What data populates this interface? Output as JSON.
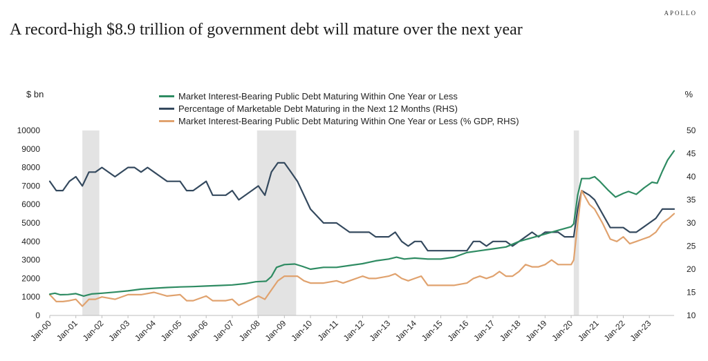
{
  "brand": "APOLLO",
  "title": "A record-high $8.9 trillion of government debt will mature over the next year",
  "chart_data": {
    "type": "line",
    "title": "A record-high $8.9 trillion of government debt will mature over the next year",
    "ylabel_left": "$ bn",
    "ylabel_right": "%",
    "ylim_left": [
      0,
      10000
    ],
    "ylim_right": [
      10,
      50
    ],
    "yticks_left": [
      "0",
      "1000",
      "2000",
      "3000",
      "4000",
      "5000",
      "6000",
      "7000",
      "8000",
      "9000",
      "10000"
    ],
    "yticks_right": [
      "10",
      "15",
      "20",
      "25",
      "30",
      "35",
      "40",
      "45",
      "50"
    ],
    "xticks": [
      "Jan-00",
      "Jan-01",
      "Jan-02",
      "Jan-03",
      "Jan-04",
      "Jan-05",
      "Jan-06",
      "Jan-07",
      "Jan-08",
      "Jan-09",
      "Jan-10",
      "Jan-11",
      "Jan-12",
      "Jan-13",
      "Jan-14",
      "Jan-15",
      "Jan-16",
      "Jan-17",
      "Jan-18",
      "Jan-19",
      "Jan-20",
      "Jan-21",
      "Jan-22",
      "Jan-23"
    ],
    "x_range": [
      2000.0,
      2023.95
    ],
    "recessions": [
      [
        2001.25,
        2001.9
      ],
      [
        2007.95,
        2009.45
      ],
      [
        2020.1,
        2020.3
      ]
    ],
    "series": [
      {
        "name": "Market Interest-Bearing Public Debt Maturing Within One Year or Less",
        "axis": "left",
        "color": "#2e8b62",
        "points": [
          [
            2000.0,
            1150
          ],
          [
            2000.2,
            1200
          ],
          [
            2000.4,
            1120
          ],
          [
            2000.7,
            1130
          ],
          [
            2001.0,
            1180
          ],
          [
            2001.3,
            1050
          ],
          [
            2001.6,
            1160
          ],
          [
            2002.0,
            1200
          ],
          [
            2002.5,
            1260
          ],
          [
            2003.0,
            1330
          ],
          [
            2003.5,
            1420
          ],
          [
            2004.0,
            1470
          ],
          [
            2004.5,
            1510
          ],
          [
            2005.0,
            1540
          ],
          [
            2005.5,
            1560
          ],
          [
            2006.0,
            1590
          ],
          [
            2006.5,
            1620
          ],
          [
            2007.0,
            1650
          ],
          [
            2007.5,
            1720
          ],
          [
            2007.9,
            1820
          ],
          [
            2008.3,
            1850
          ],
          [
            2008.5,
            2100
          ],
          [
            2008.7,
            2600
          ],
          [
            2009.0,
            2750
          ],
          [
            2009.4,
            2780
          ],
          [
            2009.7,
            2650
          ],
          [
            2010.0,
            2500
          ],
          [
            2010.5,
            2600
          ],
          [
            2011.0,
            2600
          ],
          [
            2011.5,
            2700
          ],
          [
            2012.0,
            2800
          ],
          [
            2012.5,
            2950
          ],
          [
            2013.0,
            3050
          ],
          [
            2013.3,
            3150
          ],
          [
            2013.6,
            3050
          ],
          [
            2014.0,
            3100
          ],
          [
            2014.5,
            3050
          ],
          [
            2015.0,
            3050
          ],
          [
            2015.5,
            3150
          ],
          [
            2016.0,
            3400
          ],
          [
            2016.5,
            3500
          ],
          [
            2017.0,
            3600
          ],
          [
            2017.5,
            3700
          ],
          [
            2018.0,
            4000
          ],
          [
            2018.5,
            4200
          ],
          [
            2019.0,
            4400
          ],
          [
            2019.5,
            4600
          ],
          [
            2020.0,
            4800
          ],
          [
            2020.1,
            4950
          ],
          [
            2020.25,
            6500
          ],
          [
            2020.4,
            7400
          ],
          [
            2020.7,
            7400
          ],
          [
            2020.9,
            7500
          ],
          [
            2021.1,
            7250
          ],
          [
            2021.4,
            6800
          ],
          [
            2021.7,
            6400
          ],
          [
            2022.0,
            6600
          ],
          [
            2022.2,
            6700
          ],
          [
            2022.5,
            6550
          ],
          [
            2022.8,
            6900
          ],
          [
            2023.1,
            7200
          ],
          [
            2023.3,
            7150
          ],
          [
            2023.5,
            7800
          ],
          [
            2023.7,
            8400
          ],
          [
            2023.95,
            8900
          ]
        ]
      },
      {
        "name": "Percentage of Marketable Debt Maturing in the Next 12 Months (RHS)",
        "axis": "right",
        "color": "#34495e",
        "points": [
          [
            2000.0,
            39
          ],
          [
            2000.25,
            37
          ],
          [
            2000.5,
            37
          ],
          [
            2000.75,
            39
          ],
          [
            2001.0,
            40
          ],
          [
            2001.25,
            38
          ],
          [
            2001.5,
            41
          ],
          [
            2001.75,
            41
          ],
          [
            2002.0,
            42
          ],
          [
            2002.5,
            40
          ],
          [
            2003.0,
            42
          ],
          [
            2003.25,
            42
          ],
          [
            2003.5,
            41
          ],
          [
            2003.75,
            42
          ],
          [
            2004.0,
            41
          ],
          [
            2004.5,
            39
          ],
          [
            2005.0,
            39
          ],
          [
            2005.25,
            37
          ],
          [
            2005.5,
            37
          ],
          [
            2006.0,
            39
          ],
          [
            2006.25,
            36
          ],
          [
            2006.75,
            36
          ],
          [
            2007.0,
            37
          ],
          [
            2007.25,
            35
          ],
          [
            2007.75,
            37
          ],
          [
            2008.0,
            38
          ],
          [
            2008.25,
            36
          ],
          [
            2008.5,
            41
          ],
          [
            2008.75,
            43
          ],
          [
            2009.0,
            43
          ],
          [
            2009.25,
            41
          ],
          [
            2009.5,
            39
          ],
          [
            2010.0,
            33
          ],
          [
            2010.5,
            30
          ],
          [
            2010.75,
            30
          ],
          [
            2011.0,
            30
          ],
          [
            2011.5,
            28
          ],
          [
            2012.0,
            28
          ],
          [
            2012.25,
            28
          ],
          [
            2012.5,
            27
          ],
          [
            2013.0,
            27
          ],
          [
            2013.25,
            28
          ],
          [
            2013.5,
            26
          ],
          [
            2013.75,
            25
          ],
          [
            2014.0,
            26
          ],
          [
            2014.25,
            26
          ],
          [
            2014.5,
            24
          ],
          [
            2015.0,
            24
          ],
          [
            2015.5,
            24
          ],
          [
            2016.0,
            24
          ],
          [
            2016.25,
            26
          ],
          [
            2016.5,
            26
          ],
          [
            2016.75,
            25
          ],
          [
            2017.0,
            26
          ],
          [
            2017.5,
            26
          ],
          [
            2017.75,
            25
          ],
          [
            2018.0,
            26
          ],
          [
            2018.5,
            28
          ],
          [
            2018.75,
            27
          ],
          [
            2019.0,
            28
          ],
          [
            2019.5,
            28
          ],
          [
            2019.75,
            27
          ],
          [
            2020.0,
            27
          ],
          [
            2020.1,
            27
          ],
          [
            2020.25,
            33
          ],
          [
            2020.4,
            37
          ],
          [
            2020.7,
            36
          ],
          [
            2020.9,
            35
          ],
          [
            2021.2,
            32
          ],
          [
            2021.5,
            29
          ],
          [
            2021.75,
            29
          ],
          [
            2022.0,
            29
          ],
          [
            2022.25,
            28
          ],
          [
            2022.5,
            28
          ],
          [
            2022.75,
            29
          ],
          [
            2023.0,
            30
          ],
          [
            2023.25,
            31
          ],
          [
            2023.5,
            33
          ],
          [
            2023.95,
            33
          ]
        ]
      },
      {
        "name": "Market Interest-Bearing Public Debt Maturing Within One Year or Less (% GDP, RHS)",
        "axis": "right",
        "color": "#e0a26e",
        "points": [
          [
            2000.0,
            14.5
          ],
          [
            2000.25,
            13
          ],
          [
            2000.5,
            13
          ],
          [
            2000.75,
            13.2
          ],
          [
            2001.0,
            13.5
          ],
          [
            2001.25,
            12
          ],
          [
            2001.5,
            13.5
          ],
          [
            2001.75,
            13.5
          ],
          [
            2002.0,
            14
          ],
          [
            2002.5,
            13.5
          ],
          [
            2003.0,
            14.5
          ],
          [
            2003.5,
            14.5
          ],
          [
            2004.0,
            15
          ],
          [
            2004.5,
            14.2
          ],
          [
            2005.0,
            14.5
          ],
          [
            2005.25,
            13.2
          ],
          [
            2005.5,
            13.2
          ],
          [
            2006.0,
            14.2
          ],
          [
            2006.25,
            13.2
          ],
          [
            2006.75,
            13.2
          ],
          [
            2007.0,
            13.5
          ],
          [
            2007.25,
            12.2
          ],
          [
            2007.75,
            13.5
          ],
          [
            2008.0,
            14.2
          ],
          [
            2008.25,
            13.5
          ],
          [
            2008.5,
            15.5
          ],
          [
            2008.75,
            17.5
          ],
          [
            2009.0,
            18.5
          ],
          [
            2009.5,
            18.5
          ],
          [
            2009.75,
            17.5
          ],
          [
            2010.0,
            17
          ],
          [
            2010.5,
            17
          ],
          [
            2011.0,
            17.5
          ],
          [
            2011.25,
            17
          ],
          [
            2011.5,
            17.5
          ],
          [
            2012.0,
            18.5
          ],
          [
            2012.25,
            18
          ],
          [
            2012.5,
            18
          ],
          [
            2013.0,
            18.5
          ],
          [
            2013.25,
            19
          ],
          [
            2013.5,
            18
          ],
          [
            2013.75,
            17.5
          ],
          [
            2014.0,
            18
          ],
          [
            2014.25,
            18.5
          ],
          [
            2014.5,
            16.5
          ],
          [
            2015.0,
            16.5
          ],
          [
            2015.5,
            16.5
          ],
          [
            2016.0,
            17
          ],
          [
            2016.25,
            18
          ],
          [
            2016.5,
            18.5
          ],
          [
            2016.75,
            18
          ],
          [
            2017.0,
            18.5
          ],
          [
            2017.25,
            19.5
          ],
          [
            2017.5,
            18.5
          ],
          [
            2017.75,
            18.5
          ],
          [
            2018.0,
            19.5
          ],
          [
            2018.25,
            21
          ],
          [
            2018.5,
            20.5
          ],
          [
            2018.75,
            20.5
          ],
          [
            2019.0,
            21
          ],
          [
            2019.25,
            22
          ],
          [
            2019.5,
            21
          ],
          [
            2019.75,
            21
          ],
          [
            2020.0,
            21
          ],
          [
            2020.1,
            22
          ],
          [
            2020.25,
            30
          ],
          [
            2020.4,
            37
          ],
          [
            2020.7,
            34
          ],
          [
            2020.9,
            33
          ],
          [
            2021.2,
            30
          ],
          [
            2021.5,
            26.5
          ],
          [
            2021.75,
            26
          ],
          [
            2022.0,
            27
          ],
          [
            2022.25,
            25.5
          ],
          [
            2022.5,
            26
          ],
          [
            2022.75,
            26.5
          ],
          [
            2023.0,
            27
          ],
          [
            2023.25,
            28
          ],
          [
            2023.5,
            30
          ],
          [
            2023.75,
            31
          ],
          [
            2023.95,
            32
          ]
        ]
      }
    ]
  }
}
